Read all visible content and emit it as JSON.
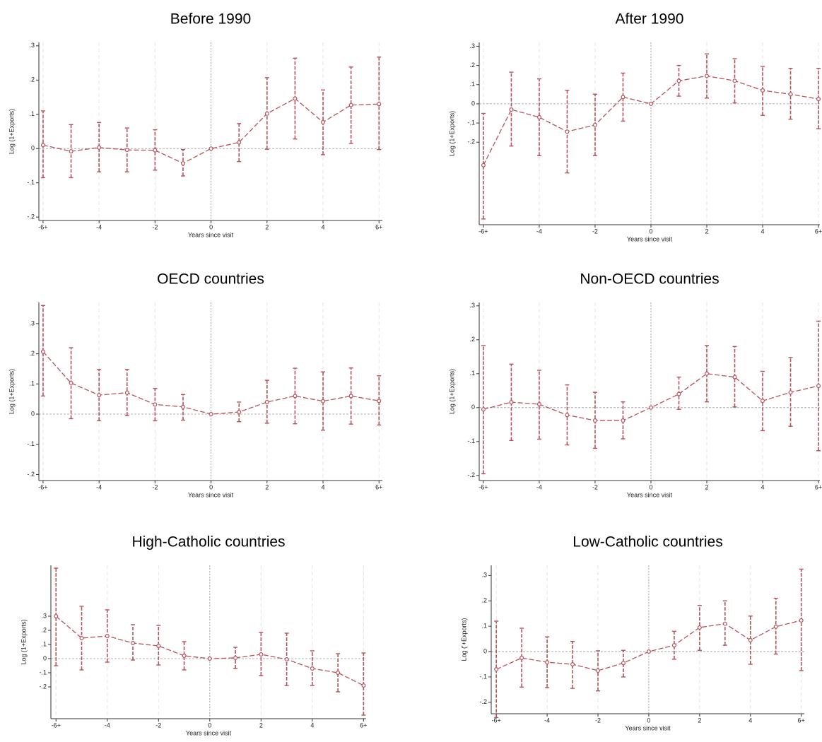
{
  "chart_data": [
    {
      "type": "line",
      "title": "Before 1990",
      "xlabel": "Years since visit",
      "ylabel": "Log (1+Exports)",
      "x": [
        -6,
        -5,
        -4,
        -3,
        -2,
        -1,
        0,
        1,
        2,
        3,
        4,
        5,
        6
      ],
      "series": [
        {
          "color": "#b5525a",
          "values": [
            0.01,
            -0.008,
            0.003,
            -0.004,
            -0.005,
            -0.043,
            0,
            0.018,
            0.102,
            0.146,
            0.077,
            0.127,
            0.13
          ],
          "ci_low": [
            -0.085,
            -0.085,
            -0.068,
            -0.068,
            -0.063,
            -0.08,
            null,
            -0.038,
            -0.002,
            0.028,
            -0.018,
            0.015,
            -0.003
          ],
          "ci_high": [
            0.11,
            0.07,
            0.076,
            0.06,
            0.055,
            -0.003,
            null,
            0.073,
            0.207,
            0.264,
            0.171,
            0.238,
            0.267
          ]
        }
      ],
      "xlim": [
        -6.15,
        6.12
      ],
      "ylim": [
        -0.21,
        0.31
      ],
      "xticks": [
        {
          "value": -6,
          "label": "-6+"
        },
        -4,
        -2,
        0,
        2,
        4,
        {
          "value": 6,
          "label": "6+"
        }
      ],
      "yticks": [
        {
          "value": -0.2,
          "label": "-.2"
        },
        {
          "value": -0.1,
          "label": "-.1"
        },
        0,
        {
          "value": 0.1,
          "label": ".1"
        },
        {
          "value": 0.2,
          "label": ".2"
        },
        {
          "value": 0.3,
          "label": ".3"
        }
      ],
      "grid": true
    },
    {
      "type": "line",
      "title": "After 1990",
      "xlabel": "Years since visit",
      "ylabel": "Log (1+Exports)",
      "x": [
        -6,
        -5,
        -4,
        -3,
        -2,
        -1,
        0,
        1,
        2,
        3,
        4,
        5,
        6
      ],
      "series": [
        {
          "color": "#b5525a",
          "values": [
            -0.32,
            -0.03,
            -0.07,
            -0.145,
            -0.11,
            0.035,
            0,
            0.12,
            0.145,
            0.12,
            0.07,
            0.05,
            0.025
          ],
          "ci_low": [
            -0.6,
            -0.22,
            -0.27,
            -0.36,
            -0.27,
            -0.09,
            null,
            0.04,
            0.03,
            0.005,
            -0.06,
            -0.08,
            -0.13
          ],
          "ci_high": [
            -0.05,
            0.165,
            0.13,
            0.07,
            0.05,
            0.16,
            null,
            0.2,
            0.26,
            0.235,
            0.195,
            0.185,
            0.185
          ]
        }
      ],
      "xlim": [
        -6.15,
        6.05
      ],
      "ylim": [
        -0.63,
        0.32
      ],
      "xticks": [
        {
          "value": -6,
          "label": "-6+"
        },
        -4,
        -2,
        0,
        2,
        4,
        {
          "value": 6,
          "label": "6+"
        }
      ],
      "yticks": [
        {
          "value": -0.2,
          "label": "-.2"
        },
        {
          "value": -0.1,
          "label": "-.1"
        },
        0,
        {
          "value": 0.1,
          "label": ".1"
        },
        {
          "value": 0.2,
          "label": ".2"
        },
        {
          "value": 0.3,
          "label": ".3"
        }
      ],
      "grid": true
    },
    {
      "type": "line",
      "title": "OECD countries",
      "xlabel": "Years since visit",
      "ylabel": "Log (1+Exports)",
      "x": [
        -6,
        -5,
        -4,
        -3,
        -2,
        -1,
        0,
        1,
        2,
        3,
        4,
        5,
        6
      ],
      "series": [
        {
          "color": "#b5525a",
          "values": [
            0.207,
            0.103,
            0.063,
            0.071,
            0.032,
            0.024,
            0,
            0.007,
            0.04,
            0.06,
            0.043,
            0.06,
            0.044
          ],
          "ci_low": [
            0.06,
            -0.015,
            -0.022,
            -0.005,
            -0.022,
            -0.02,
            null,
            -0.025,
            -0.03,
            -0.032,
            -0.053,
            -0.033,
            -0.036
          ],
          "ci_high": [
            0.36,
            0.22,
            0.148,
            0.148,
            0.085,
            0.065,
            null,
            0.04,
            0.112,
            0.152,
            0.14,
            0.153,
            0.127
          ]
        }
      ],
      "xlim": [
        -6.15,
        6.12
      ],
      "ylim": [
        -0.22,
        0.37
      ],
      "xticks": [
        {
          "value": -6,
          "label": "-6+"
        },
        -4,
        -2,
        0,
        2,
        4,
        {
          "value": 6,
          "label": "6+"
        }
      ],
      "yticks": [
        {
          "value": -0.2,
          "label": "-.2"
        },
        {
          "value": -0.1,
          "label": "-.1"
        },
        0,
        {
          "value": 0.1,
          "label": ".1"
        },
        {
          "value": 0.2,
          "label": ".2"
        },
        {
          "value": 0.3,
          "label": ".3"
        }
      ],
      "grid": true
    },
    {
      "type": "line",
      "title": "Non-OECD countries",
      "xlabel": "Years since visit",
      "ylabel": "Log (1+Exports)",
      "x": [
        -6,
        -5,
        -4,
        -3,
        -2,
        -1,
        0,
        1,
        2,
        3,
        4,
        5,
        6
      ],
      "series": [
        {
          "color": "#b5525a",
          "values": [
            -0.005,
            0.016,
            0.01,
            -0.022,
            -0.038,
            -0.038,
            0,
            0.04,
            0.1,
            0.09,
            0.02,
            0.045,
            0.064
          ],
          "ci_low": [
            -0.195,
            -0.097,
            -0.093,
            -0.11,
            -0.12,
            -0.092,
            null,
            -0.005,
            0.017,
            0.002,
            -0.068,
            -0.055,
            -0.127
          ],
          "ci_high": [
            0.183,
            0.128,
            0.11,
            0.067,
            0.045,
            0.017,
            null,
            0.09,
            0.183,
            0.18,
            0.107,
            0.148,
            0.255
          ]
        }
      ],
      "xlim": [
        -6.15,
        6.05
      ],
      "ylim": [
        -0.215,
        0.31
      ],
      "xticks": [
        {
          "value": -6,
          "label": "-6+"
        },
        -4,
        -2,
        0,
        2,
        4,
        {
          "value": 6,
          "label": "6+"
        }
      ],
      "yticks": [
        {
          "value": -0.2,
          "label": "-.2"
        },
        {
          "value": -0.1,
          "label": "-.1"
        },
        0,
        {
          "value": 0.1,
          "label": ".1"
        },
        {
          "value": 0.2,
          "label": ".2"
        },
        {
          "value": 0.3,
          "label": ".3"
        }
      ],
      "grid": true
    },
    {
      "type": "line",
      "title": "High-Catholic countries",
      "xlabel": "Years since visit",
      "ylabel": "Log (1+Exports)",
      "x": [
        -6,
        -5,
        -4,
        -3,
        -2,
        -1,
        0,
        1,
        2,
        3,
        4,
        5,
        6
      ],
      "series": [
        {
          "color": "#b5525a",
          "values": [
            0.3,
            0.145,
            0.16,
            0.11,
            0.09,
            0.02,
            0,
            0.005,
            0.03,
            -0.005,
            -0.07,
            -0.1,
            -0.19
          ],
          "ci_low": [
            -0.05,
            -0.08,
            -0.025,
            -0.01,
            -0.045,
            -0.08,
            null,
            -0.07,
            -0.12,
            -0.19,
            -0.19,
            -0.235,
            -0.4
          ],
          "ci_high": [
            0.64,
            0.37,
            0.345,
            0.24,
            0.235,
            0.12,
            null,
            0.08,
            0.185,
            0.18,
            0.055,
            0.035,
            0.04
          ]
        }
      ],
      "xlim": [
        -6.2,
        6.1
      ],
      "ylim": [
        -0.425,
        0.66
      ],
      "xticks": [
        {
          "value": -6,
          "label": "-6+"
        },
        -4,
        -2,
        0,
        2,
        4,
        {
          "value": 6,
          "label": "6+"
        }
      ],
      "yticks": [
        {
          "value": -0.2,
          "label": "-.2"
        },
        {
          "value": -0.1,
          "label": "-.1"
        },
        0,
        {
          "value": 0.1,
          "label": ".1"
        },
        {
          "value": 0.2,
          "label": ".2"
        },
        {
          "value": 0.3,
          "label": ".3"
        }
      ],
      "grid": true
    },
    {
      "type": "line",
      "title": "Low-Catholic countries",
      "xlabel": "Years since visit",
      "ylabel": "Log ('+Exports)",
      "x": [
        -6,
        -5,
        -4,
        -3,
        -2,
        -1,
        0,
        1,
        2,
        3,
        4,
        5,
        6
      ],
      "series": [
        {
          "color": "#b5525a",
          "values": [
            -0.07,
            -0.025,
            -0.042,
            -0.05,
            -0.075,
            -0.045,
            0,
            0.025,
            0.095,
            0.11,
            0.045,
            0.098,
            0.123
          ],
          "ci_low": [
            -0.26,
            -0.14,
            -0.142,
            -0.145,
            -0.155,
            -0.1,
            null,
            -0.03,
            0.005,
            0.025,
            -0.05,
            -0.01,
            -0.075
          ],
          "ci_high": [
            0.12,
            0.092,
            0.058,
            0.04,
            0.003,
            0.005,
            null,
            0.08,
            0.182,
            0.2,
            0.14,
            0.21,
            0.325
          ]
        }
      ],
      "xlim": [
        -6.2,
        6.12
      ],
      "ylim": [
        -0.245,
        0.34
      ],
      "xticks": [
        {
          "value": -6,
          "label": "-6+"
        },
        -4,
        -2,
        0,
        2,
        4,
        {
          "value": 6,
          "label": "6+"
        }
      ],
      "yticks": [
        {
          "value": -0.2,
          "label": "-.2"
        },
        {
          "value": -0.1,
          "label": "-.1"
        },
        0,
        {
          "value": 0.1,
          "label": ".1"
        },
        {
          "value": 0.2,
          "label": ".2"
        },
        {
          "value": 0.3,
          "label": ".3"
        }
      ],
      "grid": true
    }
  ]
}
